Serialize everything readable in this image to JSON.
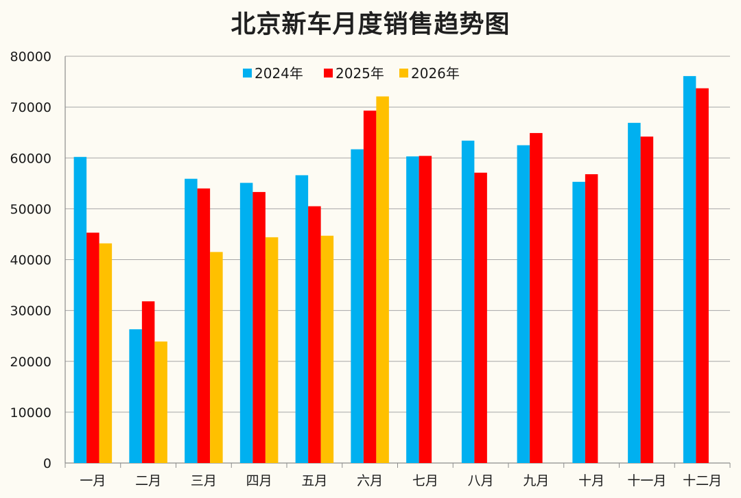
{
  "chart_data": {
    "type": "bar",
    "title": "北京新车月度销售趋势图",
    "xlabel": "",
    "ylabel": "",
    "ylim": [
      0,
      80000
    ],
    "yticks": [
      0,
      10000,
      20000,
      30000,
      40000,
      50000,
      60000,
      70000,
      80000
    ],
    "grid": true,
    "legend_position": "top-center",
    "categories": [
      "一月",
      "二月",
      "三月",
      "四月",
      "五月",
      "六月",
      "七月",
      "八月",
      "九月",
      "十月",
      "十一月",
      "十二月"
    ],
    "series": [
      {
        "name": "2024年",
        "color": "#00b0f0",
        "values": [
          60200,
          26300,
          55900,
          55100,
          56600,
          61700,
          60300,
          63400,
          62500,
          55300,
          66900,
          76100
        ]
      },
      {
        "name": "2025年",
        "color": "#ff0000",
        "values": [
          45300,
          31800,
          54000,
          53300,
          50500,
          69300,
          60400,
          57100,
          64900,
          56800,
          64200,
          73700
        ]
      },
      {
        "name": "2026年",
        "color": "#ffc000",
        "values": [
          43200,
          23900,
          41500,
          44400,
          44700,
          72100,
          null,
          null,
          null,
          null,
          null,
          null
        ]
      }
    ]
  },
  "colors": {
    "background": "#fdfbf3",
    "gridline": "#a6a6a6",
    "axis": "#8c8c8c"
  }
}
